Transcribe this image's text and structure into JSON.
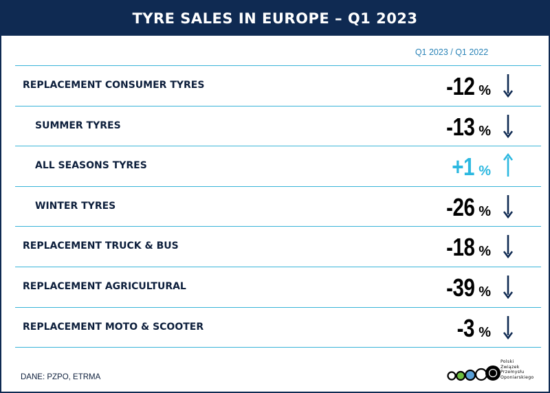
{
  "title": "TYRE SALES IN EUROPE – Q1 2023",
  "column_header": "Q1 2023 / Q1 2022",
  "source": "DANE: PZPO, ETRMA",
  "logo": {
    "lines": [
      "Polski",
      "Związek",
      "Przemysłu",
      "Oponiarskiego"
    ]
  },
  "colors": {
    "navy": "#0f2a52",
    "cyan": "#2cb8e0",
    "divider": "#37b3d8"
  },
  "chart_data": {
    "type": "table",
    "title": "TYRE SALES IN EUROPE – Q1 2023",
    "column": "Q1 2023 / Q1 2022",
    "unit": "%",
    "rows": [
      {
        "label": "REPLACEMENT CONSUMER TYRES",
        "display": "-12",
        "value": -12,
        "level": 0,
        "direction": "down"
      },
      {
        "label": "SUMMER TYRES",
        "display": "-13",
        "value": -13,
        "level": 1,
        "direction": "down"
      },
      {
        "label": "ALL SEASONS  TYRES",
        "display": "+1",
        "value": 1,
        "level": 1,
        "direction": "up"
      },
      {
        "label": "WINTER TYRES",
        "display": "-26",
        "value": -26,
        "level": 1,
        "direction": "down"
      },
      {
        "label": "REPLACEMENT TRUCK & BUS",
        "display": "-18",
        "value": -18,
        "level": 0,
        "direction": "down"
      },
      {
        "label": "REPLACEMENT AGRICULTURAL",
        "display": "-39",
        "value": -39,
        "level": 0,
        "direction": "down"
      },
      {
        "label": "REPLACEMENT MOTO & SCOOTER",
        "display": "-3",
        "value": -3,
        "level": 0,
        "direction": "down"
      }
    ]
  }
}
